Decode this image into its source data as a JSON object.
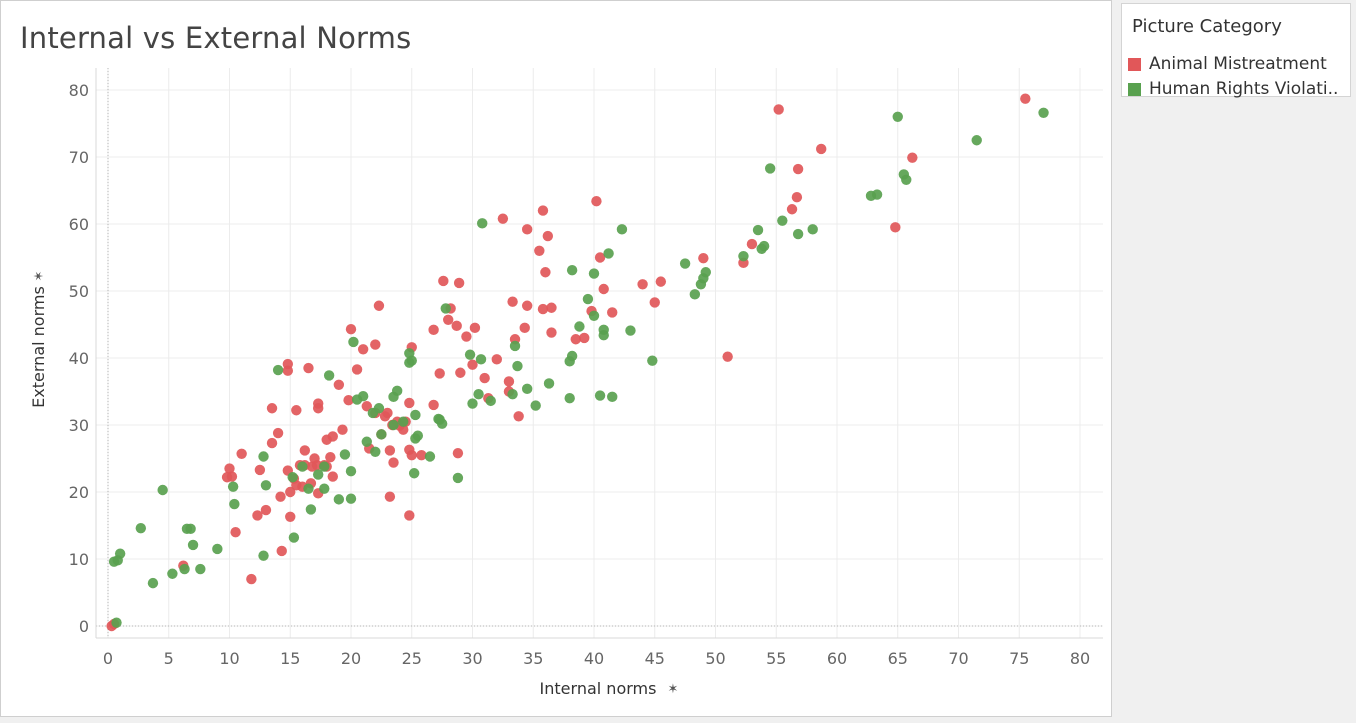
{
  "chart_data": {
    "type": "scatter",
    "title": "Internal vs External Norms",
    "xlabel": "Internal norms",
    "ylabel": "External norms",
    "xlim": [
      0,
      80
    ],
    "ylim": [
      0,
      80
    ],
    "x_ticks": [
      "0",
      "5",
      "10",
      "15",
      "20",
      "25",
      "30",
      "35",
      "40",
      "45",
      "50",
      "55",
      "60",
      "65",
      "70",
      "75",
      "80"
    ],
    "y_ticks": [
      "0",
      "10",
      "20",
      "30",
      "40",
      "50",
      "60",
      "70",
      "80"
    ],
    "grid": true,
    "legend_title": "Picture Category",
    "legend_position": "right",
    "series": [
      {
        "name": "Animal Mistreatment",
        "color": "#e15759",
        "points": [
          [
            0.3,
            0
          ],
          [
            0.5,
            0.3
          ],
          [
            6.2,
            9
          ],
          [
            10.5,
            14
          ],
          [
            11.8,
            7
          ],
          [
            12.3,
            16.5
          ],
          [
            13,
            17.3
          ],
          [
            14.3,
            11.2
          ],
          [
            9.8,
            22.2
          ],
          [
            10,
            23.5
          ],
          [
            10.2,
            22.3
          ],
          [
            11,
            25.7
          ],
          [
            12.5,
            23.3
          ],
          [
            13.5,
            27.3
          ],
          [
            14.2,
            19.3
          ],
          [
            14,
            28.8
          ],
          [
            13.5,
            32.5
          ],
          [
            14.8,
            39.1
          ],
          [
            14.8,
            38.1
          ],
          [
            14.8,
            23.2
          ],
          [
            15,
            20
          ],
          [
            15,
            16.3
          ],
          [
            15.3,
            22
          ],
          [
            15.5,
            21
          ],
          [
            15.5,
            32.2
          ],
          [
            15.8,
            24
          ],
          [
            16,
            20.8
          ],
          [
            16.2,
            26.2
          ],
          [
            16.2,
            24
          ],
          [
            16.5,
            38.5
          ],
          [
            16.7,
            21.3
          ],
          [
            16.8,
            23.8
          ],
          [
            17,
            25
          ],
          [
            17.2,
            24
          ],
          [
            17.3,
            19.8
          ],
          [
            17.3,
            33.2
          ],
          [
            17.3,
            32.5
          ],
          [
            17.8,
            24
          ],
          [
            18,
            27.8
          ],
          [
            18,
            23.8
          ],
          [
            18.3,
            25.2
          ],
          [
            18.5,
            28.3
          ],
          [
            18.5,
            22.3
          ],
          [
            19,
            36
          ],
          [
            19.3,
            29.3
          ],
          [
            19.8,
            33.7
          ],
          [
            20,
            44.3
          ],
          [
            20.5,
            38.3
          ],
          [
            21,
            41.3
          ],
          [
            21.3,
            32.8
          ],
          [
            21.5,
            26.5
          ],
          [
            22,
            42
          ],
          [
            22,
            31.8
          ],
          [
            22.3,
            47.8
          ],
          [
            22.5,
            28.6
          ],
          [
            22.8,
            31.3
          ],
          [
            23,
            31.8
          ],
          [
            23.2,
            19.3
          ],
          [
            23.2,
            26.2
          ],
          [
            23.4,
            30
          ],
          [
            23.5,
            24.4
          ],
          [
            23.8,
            30.5
          ],
          [
            24,
            29.9
          ],
          [
            24.3,
            29.3
          ],
          [
            24.5,
            30.5
          ],
          [
            24.8,
            26.3
          ],
          [
            24.8,
            33.3
          ],
          [
            24.8,
            16.5
          ],
          [
            25,
            25.5
          ],
          [
            25,
            41.6
          ],
          [
            25.8,
            25.5
          ],
          [
            26.8,
            33
          ],
          [
            26.8,
            44.2
          ],
          [
            27.3,
            37.7
          ],
          [
            27.6,
            51.5
          ],
          [
            28,
            45.7
          ],
          [
            28.2,
            47.4
          ],
          [
            28.7,
            44.8
          ],
          [
            28.8,
            25.8
          ],
          [
            28.9,
            51.2
          ],
          [
            29,
            37.8
          ],
          [
            29.5,
            43.2
          ],
          [
            30,
            39
          ],
          [
            30.2,
            44.5
          ],
          [
            31,
            37
          ],
          [
            31.3,
            34
          ],
          [
            32,
            39.8
          ],
          [
            32.5,
            60.8
          ],
          [
            33,
            35
          ],
          [
            33,
            36.5
          ],
          [
            33.3,
            48.4
          ],
          [
            33.5,
            42.8
          ],
          [
            33.8,
            31.3
          ],
          [
            34.3,
            44.5
          ],
          [
            34.5,
            47.8
          ],
          [
            34.5,
            59.2
          ],
          [
            35.5,
            56
          ],
          [
            35.8,
            62
          ],
          [
            35.8,
            47.3
          ],
          [
            36,
            52.8
          ],
          [
            36.2,
            58.2
          ],
          [
            36.5,
            47.5
          ],
          [
            36.5,
            43.8
          ],
          [
            38.5,
            42.8
          ],
          [
            39.2,
            43
          ],
          [
            39.8,
            47
          ],
          [
            40.2,
            63.4
          ],
          [
            40.5,
            55
          ],
          [
            40.8,
            50.3
          ],
          [
            41.5,
            46.8
          ],
          [
            44,
            51
          ],
          [
            45,
            48.3
          ],
          [
            45.5,
            51.4
          ],
          [
            49,
            54.9
          ],
          [
            51,
            40.2
          ],
          [
            52.3,
            54.2
          ],
          [
            53,
            57
          ],
          [
            55.2,
            77.1
          ],
          [
            56.3,
            62.2
          ],
          [
            56.7,
            64
          ],
          [
            56.8,
            68.2
          ],
          [
            58.7,
            71.2
          ],
          [
            64.8,
            59.5
          ],
          [
            66.2,
            69.9
          ],
          [
            75.5,
            78.7
          ]
        ]
      },
      {
        "name": "Human Rights Violati..",
        "color": "#59a14f",
        "points": [
          [
            0.7,
            0.5
          ],
          [
            0.5,
            9.6
          ],
          [
            0.8,
            9.8
          ],
          [
            1,
            10.8
          ],
          [
            2.7,
            14.6
          ],
          [
            3.7,
            6.4
          ],
          [
            4.5,
            20.3
          ],
          [
            5.3,
            7.8
          ],
          [
            6.3,
            8.5
          ],
          [
            6.5,
            14.5
          ],
          [
            6.8,
            14.5
          ],
          [
            7,
            12.1
          ],
          [
            7.6,
            8.5
          ],
          [
            9,
            11.5
          ],
          [
            10.3,
            20.8
          ],
          [
            10.4,
            18.2
          ],
          [
            12.8,
            10.5
          ],
          [
            12.8,
            25.3
          ],
          [
            13,
            21
          ],
          [
            14,
            38.2
          ],
          [
            15.3,
            13.2
          ],
          [
            15.2,
            22.2
          ],
          [
            16,
            23.8
          ],
          [
            16.7,
            17.4
          ],
          [
            16.5,
            20.5
          ],
          [
            17.3,
            22.6
          ],
          [
            17.8,
            20.5
          ],
          [
            17.8,
            23.8
          ],
          [
            18.2,
            37.4
          ],
          [
            19,
            18.9
          ],
          [
            19.5,
            25.6
          ],
          [
            20,
            23.1
          ],
          [
            20,
            19
          ],
          [
            20.2,
            42.4
          ],
          [
            20.5,
            33.8
          ],
          [
            21,
            34.3
          ],
          [
            21.3,
            27.5
          ],
          [
            21.8,
            31.8
          ],
          [
            22,
            26
          ],
          [
            22.3,
            32.5
          ],
          [
            22.5,
            28.6
          ],
          [
            23.5,
            34.2
          ],
          [
            23.5,
            30
          ],
          [
            23.8,
            35.1
          ],
          [
            24.3,
            30.5
          ],
          [
            24.8,
            39.3
          ],
          [
            24.8,
            40.7
          ],
          [
            25,
            39.6
          ],
          [
            25.2,
            22.8
          ],
          [
            25.3,
            31.5
          ],
          [
            25.3,
            28
          ],
          [
            25.5,
            28.4
          ],
          [
            26.5,
            25.3
          ],
          [
            27.2,
            30.9
          ],
          [
            27.5,
            30.2
          ],
          [
            27.3,
            30.8
          ],
          [
            27.8,
            47.4
          ],
          [
            28.8,
            22.1
          ],
          [
            29.8,
            40.5
          ],
          [
            30,
            33.2
          ],
          [
            30.5,
            34.6
          ],
          [
            30.7,
            39.8
          ],
          [
            30.8,
            60.1
          ],
          [
            31.5,
            33.6
          ],
          [
            33.3,
            34.6
          ],
          [
            33.5,
            41.8
          ],
          [
            33.7,
            38.8
          ],
          [
            34.5,
            35.4
          ],
          [
            35.2,
            32.9
          ],
          [
            36.3,
            36.2
          ],
          [
            38,
            34
          ],
          [
            38,
            39.5
          ],
          [
            38.2,
            40.3
          ],
          [
            38.2,
            53.1
          ],
          [
            38.8,
            44.7
          ],
          [
            39.5,
            48.8
          ],
          [
            40,
            46.3
          ],
          [
            40,
            52.6
          ],
          [
            40.5,
            34.4
          ],
          [
            40.8,
            44.2
          ],
          [
            40.8,
            43.4
          ],
          [
            41.2,
            55.6
          ],
          [
            41.5,
            34.2
          ],
          [
            42.3,
            59.2
          ],
          [
            43,
            44.1
          ],
          [
            44.8,
            39.6
          ],
          [
            47.5,
            54.1
          ],
          [
            48.3,
            49.5
          ],
          [
            48.8,
            51
          ],
          [
            49,
            51.9
          ],
          [
            49.2,
            52.8
          ],
          [
            52.3,
            55.2
          ],
          [
            53.5,
            59.1
          ],
          [
            53.8,
            56.3
          ],
          [
            54,
            56.7
          ],
          [
            54.5,
            68.3
          ],
          [
            55.5,
            60.5
          ],
          [
            56.8,
            58.5
          ],
          [
            58,
            59.2
          ],
          [
            62.8,
            64.2
          ],
          [
            63.3,
            64.4
          ],
          [
            65,
            76
          ],
          [
            65.5,
            67.4
          ],
          [
            65.7,
            66.6
          ],
          [
            71.5,
            72.5
          ],
          [
            77,
            76.6
          ]
        ]
      }
    ]
  },
  "icons": {
    "x_axis_pin": "pin-icon",
    "y_axis_pin": "pin-icon"
  }
}
